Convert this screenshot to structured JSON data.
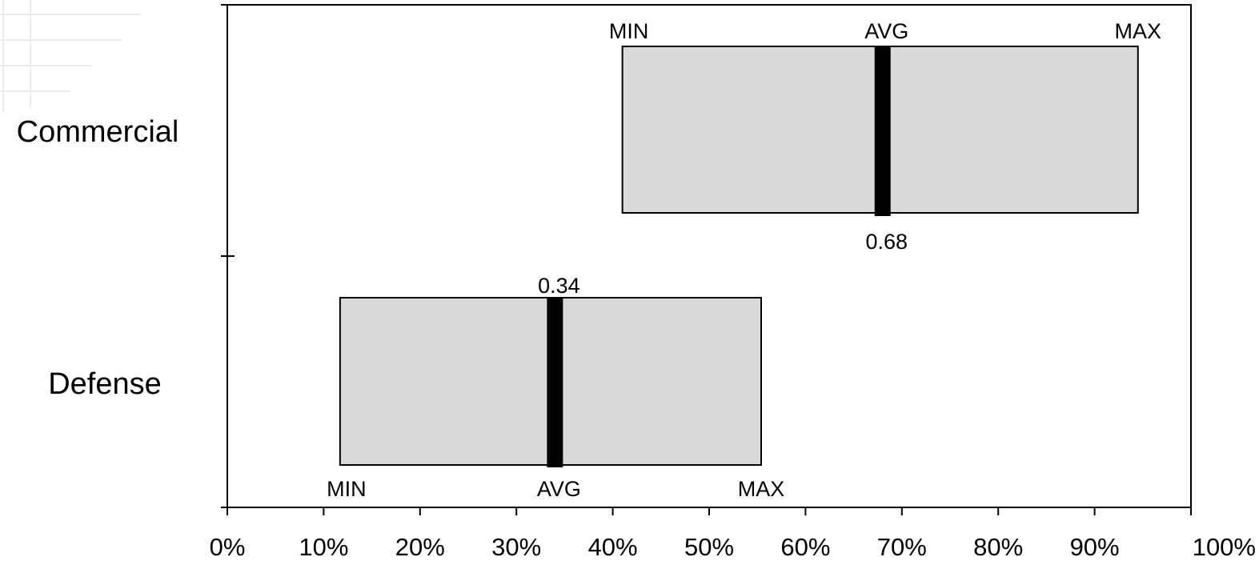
{
  "chart_data": {
    "type": "bar",
    "orientation": "horizontal",
    "categories": [
      "Commercial",
      "Defense"
    ],
    "series": [
      {
        "category": "Commercial",
        "min": 0.41,
        "avg": 0.68,
        "max": 0.945,
        "avg_label": "0.68"
      },
      {
        "category": "Defense",
        "min": 0.117,
        "avg": 0.34,
        "max": 0.554,
        "avg_label": "0.34"
      }
    ],
    "marker_labels": {
      "min": "MIN",
      "avg": "AVG",
      "max": "MAX"
    },
    "x_ticks": [
      "0%",
      "10%",
      "20%",
      "30%",
      "40%",
      "50%",
      "60%",
      "70%",
      "80%",
      "90%",
      "100%"
    ],
    "xlim": [
      0,
      1
    ],
    "grid": false,
    "colors": {
      "range_fill": "#d9d9d9",
      "range_border": "#000000",
      "avg_bar": "#000000"
    }
  }
}
